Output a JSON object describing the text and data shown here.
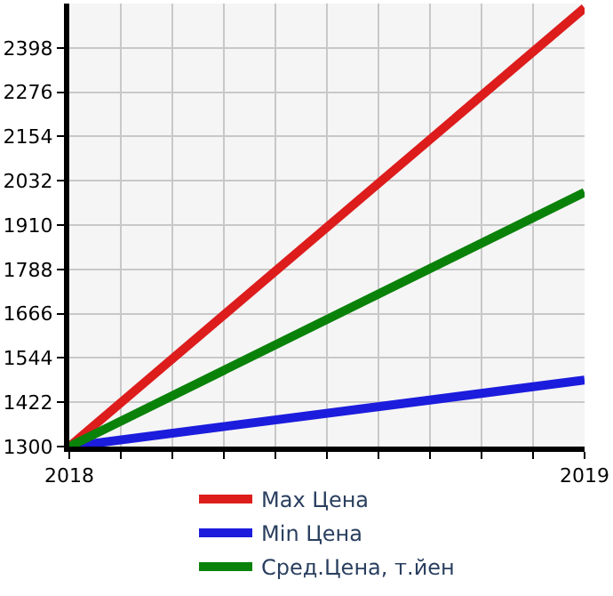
{
  "chart_data": {
    "type": "line",
    "x": [
      2018,
      2019
    ],
    "series": [
      {
        "name": "Max Цена",
        "color": "#dd1c1c",
        "values": [
          1300,
          2508
        ]
      },
      {
        "name": "Min Цена",
        "color": "#1c1cdd",
        "values": [
          1300,
          1483
        ]
      },
      {
        "name": "Сред.Цена, т.йен",
        "color": "#0a820a",
        "values": [
          1300,
          2000
        ]
      }
    ],
    "xlim": [
      2018,
      2019
    ],
    "xticks": [
      2018,
      {
        "value": 2018.1,
        "label": null
      },
      {
        "value": 2018.2,
        "label": null
      },
      {
        "value": 2018.3,
        "label": null
      },
      {
        "value": 2018.4,
        "label": null
      },
      {
        "value": 2018.5,
        "label": null
      },
      {
        "value": 2018.6,
        "label": null
      },
      {
        "value": 2018.7,
        "label": null
      },
      {
        "value": 2018.8,
        "label": null
      },
      {
        "value": 2018.9,
        "label": null
      },
      2019
    ],
    "ylim": [
      1300,
      2520
    ],
    "yticks": [
      1300,
      1422,
      1544,
      1666,
      1788,
      1910,
      2032,
      2154,
      2276,
      2398
    ],
    "grid": true,
    "legend": "bottom",
    "marker": "none",
    "line_style": "solid"
  }
}
